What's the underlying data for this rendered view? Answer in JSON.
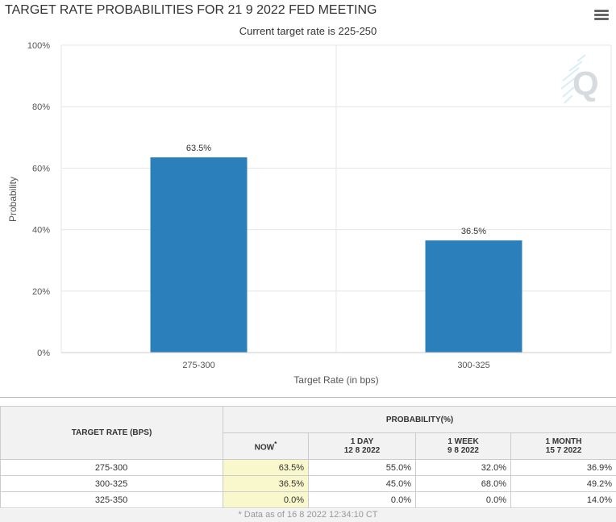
{
  "title": "TARGET RATE PROBABILITIES FOR 21 9 2022 FED MEETING",
  "subtitle": "Current target rate is 225-250",
  "menu_icon": "hamburger-menu-icon",
  "watermark_icon": "q-logo-icon",
  "colors": {
    "bar": "#2b7fba",
    "grid": "#e6e6e6",
    "now_cell": "#f8f8cc"
  },
  "chart_data": {
    "type": "bar",
    "categories": [
      "275-300",
      "300-325"
    ],
    "values": [
      63.5,
      36.5
    ],
    "data_labels": [
      "63.5%",
      "36.5%"
    ],
    "xlabel": "Target Rate (in bps)",
    "ylabel": "Probability",
    "ylim": [
      0,
      100
    ],
    "yticks": [
      "0%",
      "20%",
      "40%",
      "60%",
      "80%",
      "100%"
    ],
    "grid": true
  },
  "table": {
    "rate_header": "TARGET RATE (BPS)",
    "prob_header": "PROBABILITY(%)",
    "columns": [
      {
        "label": "NOW",
        "sub": ""
      },
      {
        "label": "1 DAY",
        "sub": "12 8 2022"
      },
      {
        "label": "1 WEEK",
        "sub": "9 8 2022"
      },
      {
        "label": "1 MONTH",
        "sub": "15 7 2022"
      }
    ],
    "now_marker": "*",
    "rows": [
      {
        "rate": "275-300",
        "now": "63.5%",
        "day": "55.0%",
        "week": "32.0%",
        "month": "36.9%"
      },
      {
        "rate": "300-325",
        "now": "36.5%",
        "day": "45.0%",
        "week": "68.0%",
        "month": "49.2%"
      },
      {
        "rate": "325-350",
        "now": "0.0%",
        "day": "0.0%",
        "week": "0.0%",
        "month": "14.0%"
      }
    ],
    "footnote": "* Data as of 16 8 2022 12:34:10 CT"
  }
}
